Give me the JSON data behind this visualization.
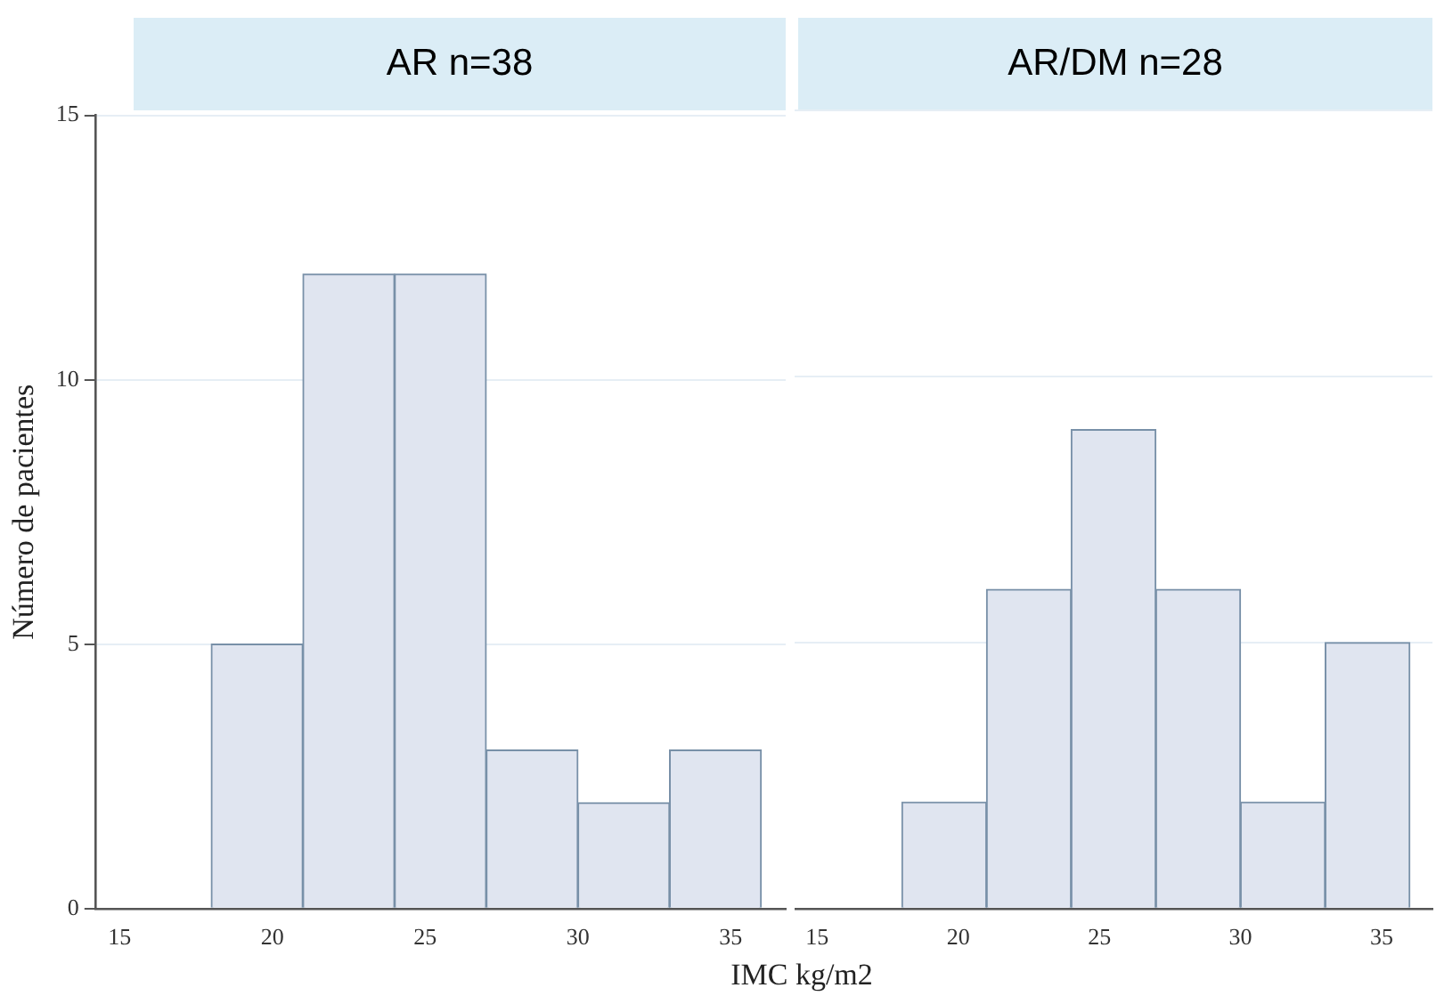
{
  "chart_data": [
    {
      "type": "histogram",
      "title": "AR n=38",
      "xlabel": "IMC kg/m2",
      "ylabel": "Número de pacientes",
      "bins": [
        18,
        21,
        24,
        27,
        30,
        33,
        36
      ],
      "values": [
        5,
        12,
        12,
        3,
        2,
        3
      ],
      "color": "#e0e5f0",
      "xlim": [
        14.2,
        36.8
      ],
      "xticks": [
        15,
        20,
        25,
        30,
        35
      ],
      "ylim": [
        0,
        15
      ],
      "yticks": [
        0,
        5,
        10,
        15
      ],
      "grid": "y"
    },
    {
      "type": "histogram",
      "title": "AR/DM n=28",
      "bins": [
        18,
        21,
        24,
        27,
        30,
        33,
        36
      ],
      "values": [
        2,
        6,
        9,
        6,
        2,
        5
      ],
      "color": "#e0e5f0",
      "xlim": [
        14.2,
        36.8
      ],
      "xticks": [
        15,
        20,
        25,
        30,
        35
      ],
      "ylim": [
        0,
        15
      ],
      "yticks": [
        0,
        5,
        10,
        15
      ],
      "grid": "y",
      "tick_labels": "x"
    }
  ]
}
